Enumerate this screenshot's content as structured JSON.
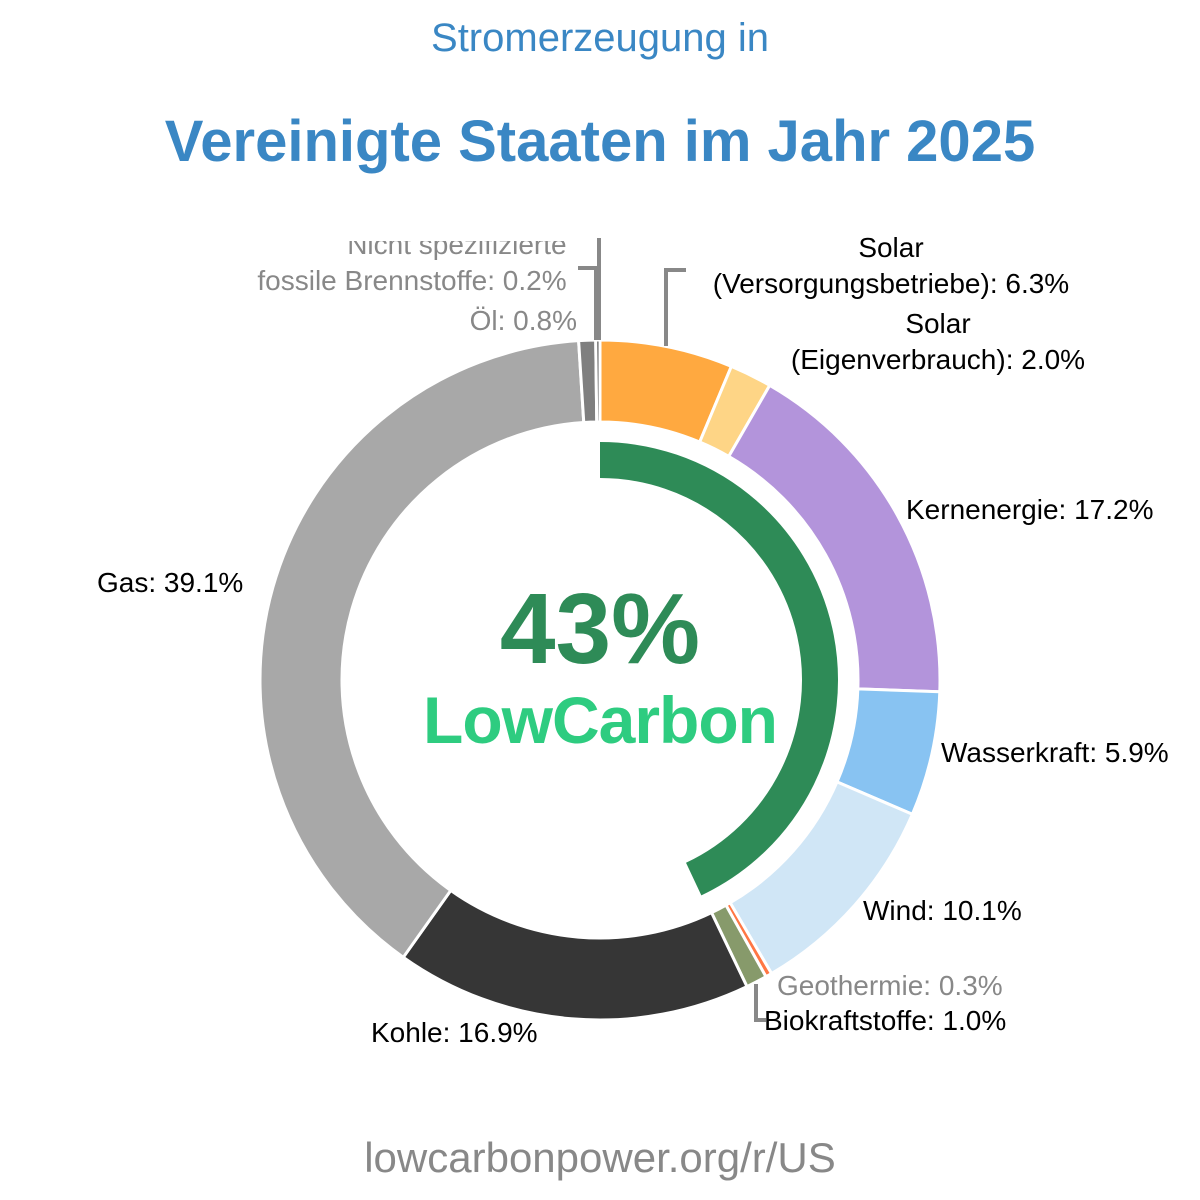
{
  "chart_data": {
    "type": "pie",
    "title": "Stromerzeugung in",
    "subtitle": "Vereinigte Staaten im Jahr 2025",
    "slices": [
      {
        "label": "Solar (Versorgungsbetriebe)",
        "value": 6.3,
        "color": "#ffa940",
        "text": "Solar\n(Versorgungsbetriebe): 6.3%"
      },
      {
        "label": "Solar (Eigenverbrauch)",
        "value": 2.0,
        "color": "#fed586",
        "text": "Solar\n(Eigenverbrauch): 2.0%"
      },
      {
        "label": "Kernenergie",
        "value": 17.2,
        "color": "#b394db",
        "text": "Kernenergie: 17.2%"
      },
      {
        "label": "Wasserkraft",
        "value": 5.9,
        "color": "#88c3f2",
        "text": "Wasserkraft: 5.9%"
      },
      {
        "label": "Wind",
        "value": 10.1,
        "color": "#d0e6f6",
        "text": "Wind: 10.1%"
      },
      {
        "label": "Geothermie",
        "value": 0.3,
        "color": "#ff7744",
        "text": "Geothermie: 0.3%"
      },
      {
        "label": "Biokraftstoffe",
        "value": 1.0,
        "color": "#879a6b",
        "text": "Biokraftstoffe: 1.0%"
      },
      {
        "label": "Kohle",
        "value": 16.9,
        "color": "#363636",
        "text": "Kohle: 16.9%"
      },
      {
        "label": "Gas",
        "value": 39.1,
        "color": "#a8a8a8",
        "text": "Gas: 39.1%"
      },
      {
        "label": "Öl",
        "value": 0.8,
        "color": "#7f7f7f",
        "text": "Öl: 0.8%"
      },
      {
        "label": "Nicht spezifizierte fossile Brennstoffe",
        "value": 0.2,
        "color": "#5a5a5a",
        "text": "Nicht spezifizierte\nfossile Brennstoffe: 0.2%"
      }
    ],
    "low_carbon": {
      "value": 43,
      "text": "43%",
      "label": "LowCarbon",
      "color": "#2e8b57"
    }
  },
  "footer": "lowcarbonpower.org/r/US"
}
